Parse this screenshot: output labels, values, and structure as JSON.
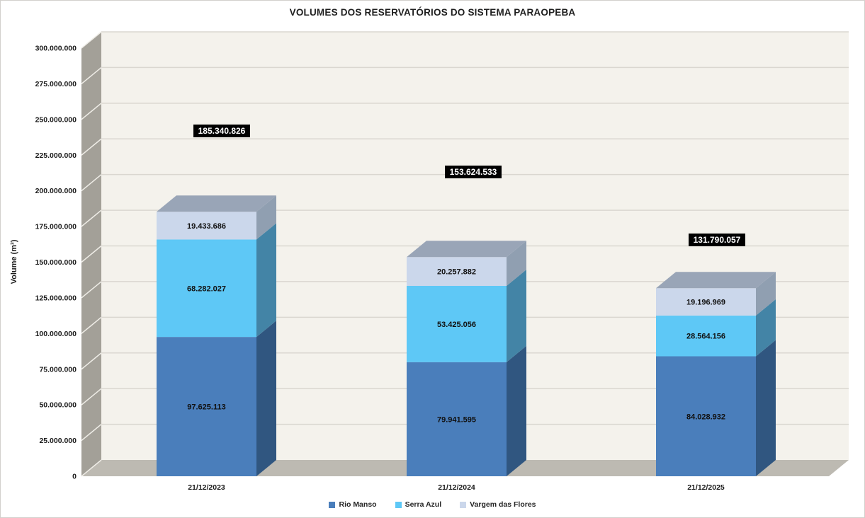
{
  "frame": {
    "background": "#ffffff",
    "border_color": "#d2d0cd"
  },
  "chart_data": {
    "type": "bar",
    "stacked": true,
    "projection": "3d",
    "title": "VOLUMES DOS RESERVATÓRIOS DO SISTEMA PARAOPEBA",
    "xlabel": "",
    "ylabel": "Volume (m³)",
    "categories": [
      "21/12/2023",
      "21/12/2024",
      "21/12/2025"
    ],
    "series": [
      {
        "name": "Rio Manso",
        "values": [
          97625113,
          79941595,
          84028932
        ],
        "labels": [
          "97.625.113",
          "79.941.595",
          "84.028.932"
        ],
        "color": "#4A7EBB",
        "side_color": "#305680",
        "top_color": "#6E97C7"
      },
      {
        "name": "Serra Azul",
        "values": [
          68282027,
          53425056,
          28564156
        ],
        "labels": [
          "68.282.027",
          "53.425.056",
          "28.564.156"
        ],
        "color": "#5EC8F6",
        "side_color": "#4384A6",
        "top_color": "#8FD6F7"
      },
      {
        "name": "Vargem das Flores",
        "values": [
          19433686,
          20257882,
          19196969
        ],
        "labels": [
          "19.433.686",
          "20.257.882",
          "19.196.969"
        ],
        "color": "#CBD7EB",
        "side_color": "#909FB1",
        "top_color": "#99A5B7"
      }
    ],
    "totals": {
      "values": [
        185340826,
        153624533,
        131790057
      ],
      "labels": [
        "185.340.826",
        "153.624.533",
        "131.790.057"
      ]
    },
    "ylim": [
      0,
      300000000
    ],
    "ytick_step": 25000000,
    "ytick_labels": [
      "0",
      "25.000.000",
      "50.000.000",
      "75.000.000",
      "100.000.000",
      "125.000.000",
      "150.000.000",
      "175.000.000",
      "200.000.000",
      "225.000.000",
      "250.000.000",
      "275.000.000",
      "300.000.000"
    ],
    "grid": true,
    "legend_position": "bottom"
  },
  "colors": {
    "plot_back_wall": "#F4F2EC",
    "side_wall": "#A3A098",
    "floor": "#BDBAB2",
    "gridline": "#DAD7D0",
    "wall_diagonal": "#EFEDE7",
    "total_label_bg": "#000000",
    "total_label_text": "#FFFFFF"
  }
}
